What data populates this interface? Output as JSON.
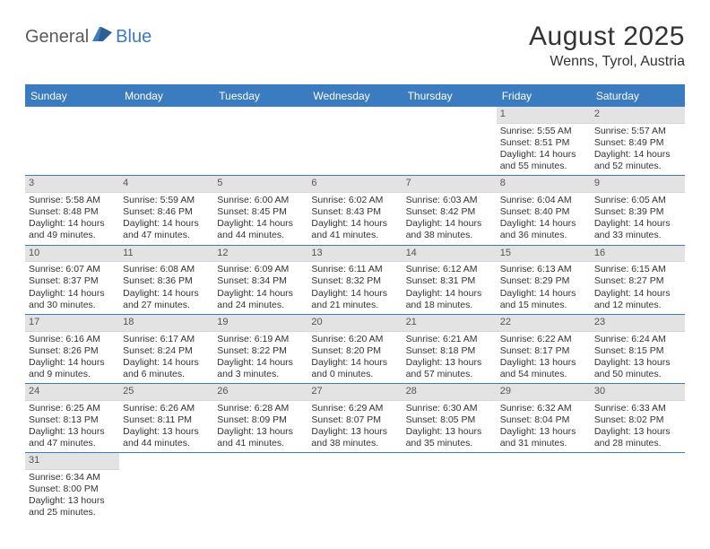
{
  "logo": {
    "part1": "General",
    "part2": "Blue"
  },
  "title": "August 2025",
  "location": "Wenns, Tyrol, Austria",
  "colors": {
    "accent": "#3b7bbf",
    "header_text": "#ffffff",
    "daynum_bg": "#e3e3e3",
    "text": "#333333",
    "logo_gray": "#5a5a5a"
  },
  "day_names": [
    "Sunday",
    "Monday",
    "Tuesday",
    "Wednesday",
    "Thursday",
    "Friday",
    "Saturday"
  ],
  "weeks": [
    [
      {
        "n": "",
        "sr": "",
        "ss": "",
        "dl": ""
      },
      {
        "n": "",
        "sr": "",
        "ss": "",
        "dl": ""
      },
      {
        "n": "",
        "sr": "",
        "ss": "",
        "dl": ""
      },
      {
        "n": "",
        "sr": "",
        "ss": "",
        "dl": ""
      },
      {
        "n": "",
        "sr": "",
        "ss": "",
        "dl": ""
      },
      {
        "n": "1",
        "sr": "Sunrise: 5:55 AM",
        "ss": "Sunset: 8:51 PM",
        "dl": "Daylight: 14 hours and 55 minutes."
      },
      {
        "n": "2",
        "sr": "Sunrise: 5:57 AM",
        "ss": "Sunset: 8:49 PM",
        "dl": "Daylight: 14 hours and 52 minutes."
      }
    ],
    [
      {
        "n": "3",
        "sr": "Sunrise: 5:58 AM",
        "ss": "Sunset: 8:48 PM",
        "dl": "Daylight: 14 hours and 49 minutes."
      },
      {
        "n": "4",
        "sr": "Sunrise: 5:59 AM",
        "ss": "Sunset: 8:46 PM",
        "dl": "Daylight: 14 hours and 47 minutes."
      },
      {
        "n": "5",
        "sr": "Sunrise: 6:00 AM",
        "ss": "Sunset: 8:45 PM",
        "dl": "Daylight: 14 hours and 44 minutes."
      },
      {
        "n": "6",
        "sr": "Sunrise: 6:02 AM",
        "ss": "Sunset: 8:43 PM",
        "dl": "Daylight: 14 hours and 41 minutes."
      },
      {
        "n": "7",
        "sr": "Sunrise: 6:03 AM",
        "ss": "Sunset: 8:42 PM",
        "dl": "Daylight: 14 hours and 38 minutes."
      },
      {
        "n": "8",
        "sr": "Sunrise: 6:04 AM",
        "ss": "Sunset: 8:40 PM",
        "dl": "Daylight: 14 hours and 36 minutes."
      },
      {
        "n": "9",
        "sr": "Sunrise: 6:05 AM",
        "ss": "Sunset: 8:39 PM",
        "dl": "Daylight: 14 hours and 33 minutes."
      }
    ],
    [
      {
        "n": "10",
        "sr": "Sunrise: 6:07 AM",
        "ss": "Sunset: 8:37 PM",
        "dl": "Daylight: 14 hours and 30 minutes."
      },
      {
        "n": "11",
        "sr": "Sunrise: 6:08 AM",
        "ss": "Sunset: 8:36 PM",
        "dl": "Daylight: 14 hours and 27 minutes."
      },
      {
        "n": "12",
        "sr": "Sunrise: 6:09 AM",
        "ss": "Sunset: 8:34 PM",
        "dl": "Daylight: 14 hours and 24 minutes."
      },
      {
        "n": "13",
        "sr": "Sunrise: 6:11 AM",
        "ss": "Sunset: 8:32 PM",
        "dl": "Daylight: 14 hours and 21 minutes."
      },
      {
        "n": "14",
        "sr": "Sunrise: 6:12 AM",
        "ss": "Sunset: 8:31 PM",
        "dl": "Daylight: 14 hours and 18 minutes."
      },
      {
        "n": "15",
        "sr": "Sunrise: 6:13 AM",
        "ss": "Sunset: 8:29 PM",
        "dl": "Daylight: 14 hours and 15 minutes."
      },
      {
        "n": "16",
        "sr": "Sunrise: 6:15 AM",
        "ss": "Sunset: 8:27 PM",
        "dl": "Daylight: 14 hours and 12 minutes."
      }
    ],
    [
      {
        "n": "17",
        "sr": "Sunrise: 6:16 AM",
        "ss": "Sunset: 8:26 PM",
        "dl": "Daylight: 14 hours and 9 minutes."
      },
      {
        "n": "18",
        "sr": "Sunrise: 6:17 AM",
        "ss": "Sunset: 8:24 PM",
        "dl": "Daylight: 14 hours and 6 minutes."
      },
      {
        "n": "19",
        "sr": "Sunrise: 6:19 AM",
        "ss": "Sunset: 8:22 PM",
        "dl": "Daylight: 14 hours and 3 minutes."
      },
      {
        "n": "20",
        "sr": "Sunrise: 6:20 AM",
        "ss": "Sunset: 8:20 PM",
        "dl": "Daylight: 14 hours and 0 minutes."
      },
      {
        "n": "21",
        "sr": "Sunrise: 6:21 AM",
        "ss": "Sunset: 8:18 PM",
        "dl": "Daylight: 13 hours and 57 minutes."
      },
      {
        "n": "22",
        "sr": "Sunrise: 6:22 AM",
        "ss": "Sunset: 8:17 PM",
        "dl": "Daylight: 13 hours and 54 minutes."
      },
      {
        "n": "23",
        "sr": "Sunrise: 6:24 AM",
        "ss": "Sunset: 8:15 PM",
        "dl": "Daylight: 13 hours and 50 minutes."
      }
    ],
    [
      {
        "n": "24",
        "sr": "Sunrise: 6:25 AM",
        "ss": "Sunset: 8:13 PM",
        "dl": "Daylight: 13 hours and 47 minutes."
      },
      {
        "n": "25",
        "sr": "Sunrise: 6:26 AM",
        "ss": "Sunset: 8:11 PM",
        "dl": "Daylight: 13 hours and 44 minutes."
      },
      {
        "n": "26",
        "sr": "Sunrise: 6:28 AM",
        "ss": "Sunset: 8:09 PM",
        "dl": "Daylight: 13 hours and 41 minutes."
      },
      {
        "n": "27",
        "sr": "Sunrise: 6:29 AM",
        "ss": "Sunset: 8:07 PM",
        "dl": "Daylight: 13 hours and 38 minutes."
      },
      {
        "n": "28",
        "sr": "Sunrise: 6:30 AM",
        "ss": "Sunset: 8:05 PM",
        "dl": "Daylight: 13 hours and 35 minutes."
      },
      {
        "n": "29",
        "sr": "Sunrise: 6:32 AM",
        "ss": "Sunset: 8:04 PM",
        "dl": "Daylight: 13 hours and 31 minutes."
      },
      {
        "n": "30",
        "sr": "Sunrise: 6:33 AM",
        "ss": "Sunset: 8:02 PM",
        "dl": "Daylight: 13 hours and 28 minutes."
      }
    ],
    [
      {
        "n": "31",
        "sr": "Sunrise: 6:34 AM",
        "ss": "Sunset: 8:00 PM",
        "dl": "Daylight: 13 hours and 25 minutes."
      },
      {
        "n": "",
        "sr": "",
        "ss": "",
        "dl": ""
      },
      {
        "n": "",
        "sr": "",
        "ss": "",
        "dl": ""
      },
      {
        "n": "",
        "sr": "",
        "ss": "",
        "dl": ""
      },
      {
        "n": "",
        "sr": "",
        "ss": "",
        "dl": ""
      },
      {
        "n": "",
        "sr": "",
        "ss": "",
        "dl": ""
      },
      {
        "n": "",
        "sr": "",
        "ss": "",
        "dl": ""
      }
    ]
  ]
}
